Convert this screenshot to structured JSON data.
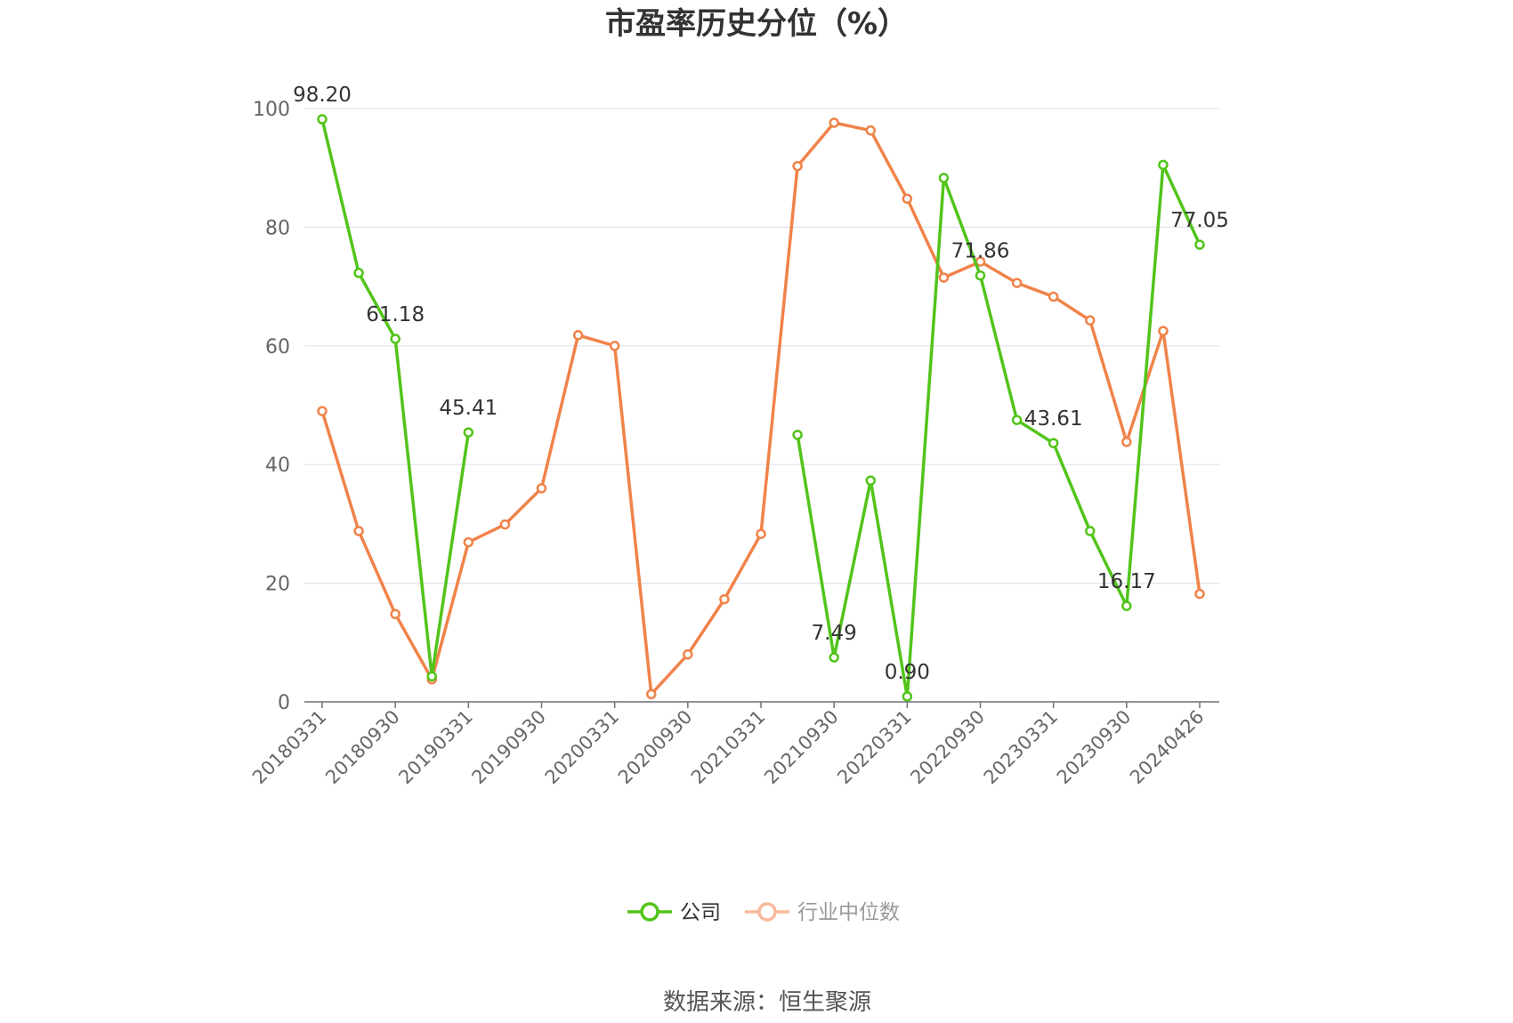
{
  "chart_data": {
    "type": "line",
    "title": "市盈率历史分位（%）",
    "source": "数据来源：恒生聚源",
    "ylim": [
      0,
      100
    ],
    "yticks": [
      0,
      20,
      40,
      60,
      80,
      100
    ],
    "x": [
      "20180331",
      "20180630",
      "20180930",
      "20181231",
      "20190331",
      "20190630",
      "20190930",
      "20191231",
      "20200331",
      "20200630",
      "20200930",
      "20201231",
      "20210331",
      "20210630",
      "20210930",
      "20211231",
      "20220331",
      "20220630",
      "20220930",
      "20221231",
      "20230331",
      "20230630",
      "20230930",
      "20231231",
      "20240426"
    ],
    "x_tick_labels": [
      "20180331",
      "20180930",
      "20190331",
      "20190930",
      "20200331",
      "20200930",
      "20210331",
      "20210930",
      "20220331",
      "20220930",
      "20230331",
      "20230930",
      "20240426"
    ],
    "grid": true,
    "legend_position": "bottom",
    "series": [
      {
        "name": "公司",
        "color": "#52c41a",
        "values": [
          98.2,
          72.3,
          61.18,
          4.3,
          45.41,
          null,
          null,
          null,
          null,
          null,
          null,
          null,
          null,
          45.0,
          7.49,
          37.3,
          0.9,
          88.3,
          71.86,
          47.5,
          43.61,
          28.8,
          16.17,
          90.5,
          77.05
        ],
        "labels": {
          "0": "98.20",
          "2": "61.18",
          "4": "45.41",
          "14": "7.49",
          "16": "0.90",
          "18": "71.86",
          "20": "43.61",
          "22": "16.17",
          "24": "77.05"
        }
      },
      {
        "name": "行业中位数",
        "color": "#f0834a",
        "values": [
          49.0,
          28.8,
          14.8,
          3.8,
          26.9,
          29.9,
          36.0,
          61.8,
          60.0,
          1.3,
          8.0,
          17.3,
          28.3,
          90.3,
          97.6,
          96.3,
          84.8,
          71.5,
          74.2,
          70.6,
          68.3,
          64.3,
          43.8,
          62.5,
          18.2
        ],
        "labels": {}
      }
    ]
  },
  "legend": {
    "company": "公司",
    "industry": "行业中位数",
    "industry_text_color": "#999999",
    "company_text_color": "#333333"
  }
}
